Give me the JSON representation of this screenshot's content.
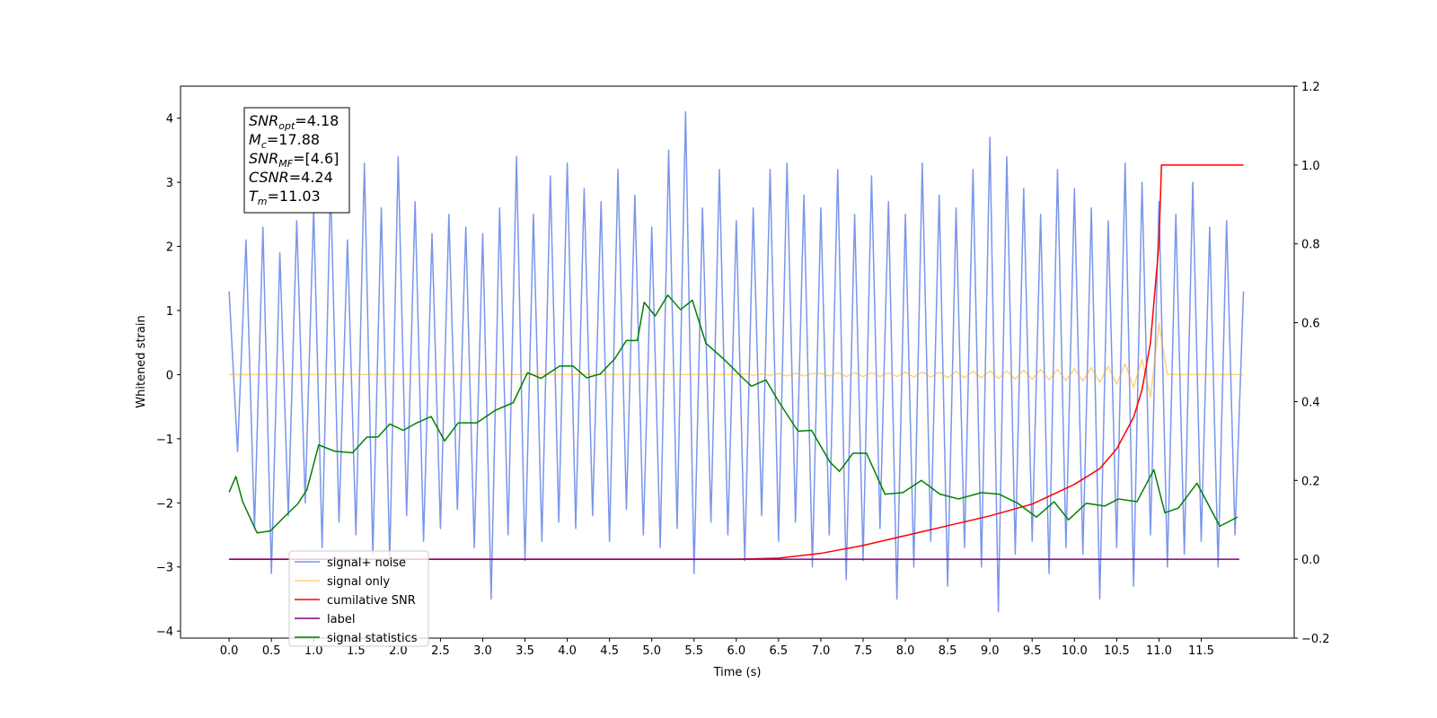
{
  "chart_data": {
    "type": "line",
    "xlabel": "Time (s)",
    "ylabel": "Whitened strain",
    "xlim": [
      -0.575,
      12.6
    ],
    "ylim": [
      -4.11,
      4.5
    ],
    "y2lim": [
      -0.2,
      1.2
    ],
    "xticks": [
      {
        "value": 0,
        "label": "0.0"
      },
      0.5,
      {
        "value": 1,
        "label": "1.0"
      },
      1.5,
      {
        "value": 2,
        "label": "2.0"
      },
      2.5,
      {
        "value": 3,
        "label": "3.0"
      },
      3.5,
      {
        "value": 4,
        "label": "4.0"
      },
      4.5,
      {
        "value": 5,
        "label": "5.0"
      },
      5.5,
      {
        "value": 6,
        "label": "6.0"
      },
      6.5,
      {
        "value": 7,
        "label": "7.0"
      },
      7.5,
      {
        "value": 8,
        "label": "8.0"
      },
      8.5,
      {
        "value": 9,
        "label": "9.0"
      },
      9.5,
      {
        "value": 10,
        "label": "10.0"
      },
      10.5,
      {
        "value": 11,
        "label": "11.0"
      },
      11.5
    ],
    "yticks": [
      {
        "value": -4,
        "label": "−4"
      },
      {
        "value": -3,
        "label": "−3"
      },
      {
        "value": -2,
        "label": "−2"
      },
      {
        "value": -1,
        "label": "−1"
      },
      0,
      1,
      2,
      3,
      4
    ],
    "y2ticks": [
      {
        "value": -0.2,
        "label": "−0.2"
      },
      {
        "value": 0,
        "label": "0.0"
      },
      0.2,
      0.4,
      0.6,
      0.8,
      {
        "value": 1,
        "label": "1.0"
      },
      1.2
    ],
    "legend": "lower left",
    "annotation": [
      {
        "var": "SNR",
        "sub": "opt",
        "text": "=4.18"
      },
      {
        "var": "M",
        "sub": "c",
        "text": "=17.88"
      },
      {
        "var": "SNR",
        "sub": "MF",
        "text": "=[4.6]"
      },
      {
        "var": "CSNR",
        "text": "=4.24"
      },
      {
        "var": "T",
        "sub": "m",
        "text": "=11.03"
      }
    ],
    "x": [
      0,
      0.1,
      0.2,
      0.3,
      0.4,
      0.5,
      0.6,
      0.7,
      0.8,
      0.9,
      1,
      1.1,
      1.2,
      1.3,
      1.4,
      1.5,
      1.6,
      1.7,
      1.8,
      1.9,
      2,
      2.1,
      2.2,
      2.3,
      2.4,
      2.5,
      2.6,
      2.7,
      2.8,
      2.9,
      3,
      3.1,
      3.2,
      3.3,
      3.4,
      3.5,
      3.6,
      3.7,
      3.8,
      3.9,
      4,
      4.1,
      4.2,
      4.3,
      4.4,
      4.5,
      4.6,
      4.7,
      4.8,
      4.9,
      5,
      5.1,
      5.2,
      5.3,
      5.4,
      5.5,
      5.6,
      5.7,
      5.8,
      5.9,
      6,
      6.1,
      6.2,
      6.3,
      6.4,
      6.5,
      6.6,
      6.7,
      6.8,
      6.9,
      7,
      7.1,
      7.2,
      7.3,
      7.4,
      7.5,
      7.6,
      7.7,
      7.8,
      7.9,
      8,
      8.1,
      8.2,
      8.3,
      8.4,
      8.5,
      8.6,
      8.7,
      8.8,
      8.9,
      9,
      9.1,
      9.2,
      9.3,
      9.4,
      9.5,
      9.6,
      9.7,
      9.8,
      9.9,
      10,
      10.1,
      10.2,
      10.3,
      10.4,
      10.5,
      10.6,
      10.7,
      10.8,
      10.9,
      11,
      11.1,
      11.2,
      11.3,
      11.4,
      11.5,
      11.6,
      11.7,
      11.8,
      11.9,
      12
    ],
    "series": [
      {
        "name": "signal+ noise",
        "color": "#4169e1",
        "values": [
          1.3,
          -1.2,
          2.1,
          -2.4,
          2.3,
          -3.1,
          1.9,
          -2.2,
          2.4,
          -2.0,
          2.6,
          -2.7,
          3.0,
          -2.3,
          2.1,
          -2.5,
          3.3,
          -2.8,
          2.6,
          -2.9,
          3.4,
          -2.2,
          2.7,
          -2.6,
          2.2,
          -2.4,
          2.5,
          -2.1,
          2.3,
          -2.7,
          2.2,
          -3.5,
          2.6,
          -2.5,
          3.4,
          -2.9,
          2.5,
          -2.6,
          3.1,
          -2.3,
          3.3,
          -2.4,
          2.9,
          -2.2,
          2.7,
          -2.6,
          3.2,
          -2.1,
          2.8,
          -2.5,
          2.3,
          -2.7,
          3.5,
          -2.4,
          4.1,
          -3.1,
          2.6,
          -2.3,
          3.2,
          -2.5,
          2.4,
          -2.9,
          2.6,
          -2.2,
          3.2,
          -2.6,
          3.3,
          -2.3,
          2.8,
          -3.0,
          2.6,
          -2.5,
          3.2,
          -3.2,
          2.5,
          -2.9,
          3.1,
          -2.4,
          2.7,
          -3.5,
          2.5,
          -3.0,
          3.3,
          -2.6,
          2.8,
          -3.3,
          2.6,
          -2.7,
          3.2,
          -3.0,
          3.7,
          -3.7,
          3.4,
          -2.8,
          2.9,
          -2.6,
          2.5,
          -3.1,
          3.2,
          -2.7,
          2.9,
          -2.8,
          2.6,
          -3.5,
          2.4,
          -2.7,
          3.3,
          -3.3,
          3.0,
          -2.5,
          2.7,
          -3.0,
          2.5,
          -2.8,
          3.0,
          -2.6,
          2.3,
          -3.0,
          2.4,
          -2.5,
          1.3
        ]
      },
      {
        "name": "signal only",
        "color": "#ffa500",
        "values": [
          0,
          0,
          0,
          0,
          0,
          0,
          0,
          0,
          0,
          0,
          0,
          0,
          0,
          0,
          0,
          0,
          0,
          0,
          0,
          0,
          0,
          0,
          0,
          0,
          0,
          0,
          0,
          0,
          0,
          0,
          0,
          0,
          0,
          0,
          0,
          0,
          0,
          0,
          0,
          0,
          0,
          0,
          0,
          0,
          0,
          0,
          0,
          0,
          0,
          0,
          0,
          0,
          0,
          0,
          0,
          0,
          0,
          0,
          0,
          0,
          0,
          0.01,
          -0.01,
          0.01,
          -0.01,
          0.02,
          -0.02,
          0.02,
          -0.02,
          0.02,
          0.02,
          -0.02,
          0.03,
          -0.03,
          0.03,
          -0.03,
          0.03,
          -0.03,
          0.03,
          -0.03,
          0.04,
          -0.04,
          0.04,
          -0.04,
          0.04,
          -0.05,
          0.05,
          -0.05,
          0.05,
          -0.05,
          0.06,
          -0.06,
          0.06,
          -0.07,
          0.07,
          -0.07,
          0.08,
          -0.08,
          0.08,
          -0.09,
          0.09,
          -0.1,
          0.11,
          -0.12,
          0.13,
          -0.15,
          0.17,
          -0.2,
          0.24,
          -0.35,
          0.8,
          0,
          0,
          0,
          0,
          0,
          0,
          0,
          0,
          0,
          0
        ]
      },
      {
        "name": "cumilative SNR",
        "color": "#ff0000",
        "axis": "y2",
        "x": [
          0,
          6.0,
          6.5,
          7.0,
          7.5,
          8.0,
          8.5,
          9.0,
          9.5,
          10.0,
          10.3,
          10.5,
          10.7,
          10.8,
          10.9,
          11.0,
          11.03,
          12.0
        ],
        "values": [
          0,
          0,
          0.003,
          0.015,
          0.035,
          0.06,
          0.085,
          0.11,
          0.14,
          0.19,
          0.23,
          0.28,
          0.36,
          0.43,
          0.55,
          0.8,
          1.0,
          1.0
        ]
      },
      {
        "name": "label",
        "color": "#800080",
        "axis": "y2",
        "x": [
          0,
          11.95
        ],
        "values": [
          0,
          0
        ]
      },
      {
        "name": "signal statistics",
        "color": "#008000",
        "axis": "y2",
        "x": [
          0,
          0.08,
          0.16,
          0.33,
          0.49,
          0.65,
          0.81,
          0.92,
          1.06,
          1.25,
          1.46,
          1.63,
          1.76,
          1.9,
          2.06,
          2.22,
          2.39,
          2.55,
          2.71,
          2.93,
          3.15,
          3.36,
          3.53,
          3.69,
          3.91,
          4.07,
          4.23,
          4.39,
          4.56,
          4.7,
          4.83,
          4.91,
          5.04,
          5.19,
          5.34,
          5.48,
          5.64,
          5.86,
          6.08,
          6.18,
          6.35,
          6.51,
          6.73,
          6.89,
          7.11,
          7.22,
          7.38,
          7.54,
          7.76,
          7.97,
          8.19,
          8.41,
          8.63,
          8.9,
          9.11,
          9.33,
          9.55,
          9.76,
          9.93,
          10.14,
          10.36,
          10.52,
          10.74,
          10.94,
          11.07,
          11.23,
          11.45,
          11.72,
          11.93
        ],
        "values": [
          0.17,
          0.21,
          0.146,
          0.067,
          0.072,
          0.107,
          0.14,
          0.176,
          0.29,
          0.274,
          0.27,
          0.31,
          0.31,
          0.343,
          0.327,
          0.346,
          0.362,
          0.3,
          0.346,
          0.346,
          0.378,
          0.397,
          0.473,
          0.459,
          0.49,
          0.49,
          0.46,
          0.47,
          0.508,
          0.555,
          0.555,
          0.652,
          0.617,
          0.67,
          0.633,
          0.657,
          0.548,
          0.506,
          0.459,
          0.439,
          0.455,
          0.397,
          0.325,
          0.327,
          0.246,
          0.223,
          0.269,
          0.269,
          0.165,
          0.169,
          0.2,
          0.165,
          0.153,
          0.169,
          0.165,
          0.142,
          0.107,
          0.146,
          0.1,
          0.142,
          0.135,
          0.153,
          0.146,
          0.227,
          0.118,
          0.13,
          0.193,
          0.084,
          0.107
        ]
      }
    ]
  }
}
